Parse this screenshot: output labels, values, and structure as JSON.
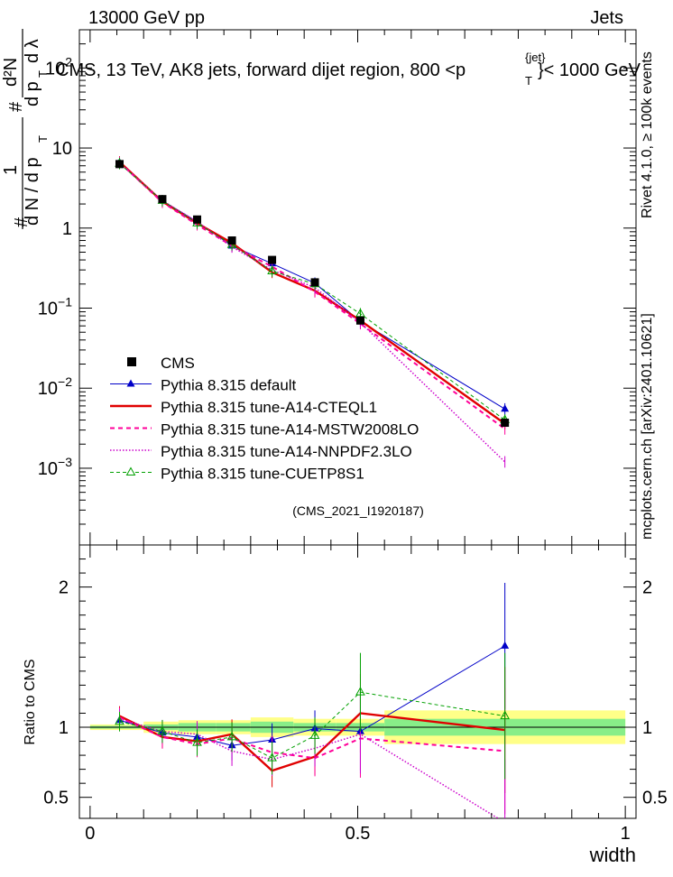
{
  "header": {
    "left": "13000 GeV pp",
    "right": "Jets",
    "plot_title": "CMS, 13 TeV, AK8 jets, forward dijet region, 800 <p",
    "title_sup": "{jet}",
    "title_sub": "T",
    "title_tail": "}< 1000 GeV",
    "side_rivet": "Rivet 4.1.0, ≥ 100k events",
    "side_mcplots": "mcplots.cern.ch [arXiv:2401.10621]",
    "watermark": "(CMS_2021_I1920187)"
  },
  "chart_data": [
    {
      "type": "line",
      "title": "CMS, 13 TeV, AK8 jets, forward dijet region, 800 < p_T^{jet} < 1000 GeV",
      "xlabel": "width",
      "ylabel": "1/dN/dp_T  d²N/(dp_T dλ)",
      "yscale": "log",
      "xlim": [
        -0.02,
        1.02
      ],
      "ylim": [
        0.00011,
        300
      ],
      "ylabel_parts": [
        "#",
        "1",
        "d N / d p",
        "T",
        "#",
        "d²N",
        "d p",
        "T",
        "d λ"
      ],
      "yticks": [
        {
          "v": 0.001,
          "base": "10",
          "exp": "−3"
        },
        {
          "v": 0.01,
          "base": "10",
          "exp": "−2"
        },
        {
          "v": 0.1,
          "base": "10",
          "exp": "−1"
        },
        {
          "v": 1,
          "base": "1",
          "exp": ""
        },
        {
          "v": 10,
          "base": "10",
          "exp": ""
        },
        {
          "v": 100,
          "base": "10",
          "exp": "2"
        }
      ],
      "x": [
        0.055,
        0.135,
        0.2,
        0.265,
        0.34,
        0.42,
        0.505,
        0.775
      ],
      "data": {
        "name": "CMS",
        "values": [
          6.3,
          2.3,
          1.28,
          0.7,
          0.4,
          0.21,
          0.07,
          0.0037
        ]
      },
      "series": [
        {
          "name": "Pythia 8.315 default",
          "color": "#0000c8",
          "style": "solid",
          "marker": "triangle-filled",
          "values": [
            6.6,
            2.2,
            1.2,
            0.6,
            0.36,
            0.205,
            0.068,
            0.0055
          ]
        },
        {
          "name": "Pythia 8.315 tune-A14-CTEQL1",
          "color": "#e00000",
          "style": "solid-thick",
          "marker": "none",
          "values": [
            6.7,
            2.15,
            1.15,
            0.65,
            0.28,
            0.165,
            0.07,
            0.0036
          ]
        },
        {
          "name": "Pythia 8.315 tune-A14-MSTW2008LO",
          "color": "#ff0099",
          "style": "dashed",
          "marker": "none",
          "values": [
            6.6,
            2.1,
            1.1,
            0.6,
            0.33,
            0.16,
            0.064,
            0.0031
          ]
        },
        {
          "name": "Pythia 8.315 tune-A14-NNPDF2.3LO",
          "color": "#cc00cc",
          "style": "dotted",
          "marker": "none",
          "values": [
            6.5,
            2.2,
            1.2,
            0.58,
            0.3,
            0.18,
            0.066,
            0.0012
          ]
        },
        {
          "name": "Pythia 8.315 tune-CUETP8S1",
          "color": "#00a000",
          "style": "dashed-thin",
          "marker": "triangle-open",
          "values": [
            6.4,
            2.2,
            1.15,
            0.62,
            0.29,
            0.2,
            0.085,
            0.004
          ]
        }
      ],
      "legend_position": "lower-left"
    },
    {
      "type": "line",
      "ylabel": "Ratio to CMS",
      "xlabel": "width",
      "xlim": [
        -0.02,
        1.02
      ],
      "ylim": [
        0.35,
        2.3
      ],
      "xticks": [
        "0",
        "0.5",
        "1"
      ],
      "yticks": [
        "0.5",
        "1",
        "2"
      ],
      "x": [
        0.055,
        0.135,
        0.2,
        0.265,
        0.34,
        0.42,
        0.505,
        0.775
      ],
      "bands": [
        {
          "x0": 0.0,
          "x1": 0.1,
          "stat": 0.01,
          "total": 0.02
        },
        {
          "x0": 0.1,
          "x1": 0.165,
          "stat": 0.02,
          "total": 0.04
        },
        {
          "x0": 0.165,
          "x1": 0.235,
          "stat": 0.03,
          "total": 0.05
        },
        {
          "x0": 0.235,
          "x1": 0.3,
          "stat": 0.03,
          "total": 0.05
        },
        {
          "x0": 0.3,
          "x1": 0.38,
          "stat": 0.04,
          "total": 0.07
        },
        {
          "x0": 0.38,
          "x1": 0.46,
          "stat": 0.03,
          "total": 0.06
        },
        {
          "x0": 0.46,
          "x1": 0.55,
          "stat": 0.03,
          "total": 0.06
        },
        {
          "x0": 0.55,
          "x1": 1.0,
          "stat": 0.06,
          "total": 0.12
        }
      ],
      "series": [
        {
          "name": "Pythia 8.315 default",
          "values": [
            1.05,
            0.96,
            0.93,
            0.87,
            0.91,
            0.99,
            0.97,
            1.58
          ]
        },
        {
          "name": "Pythia 8.315 tune-A14-CTEQL1",
          "values": [
            1.08,
            0.93,
            0.9,
            0.95,
            0.69,
            0.79,
            1.1,
            0.98
          ]
        },
        {
          "name": "Pythia 8.315 tune-A14-MSTW2008LO",
          "values": [
            1.07,
            0.93,
            0.88,
            0.92,
            0.82,
            0.78,
            0.92,
            0.83
          ]
        },
        {
          "name": "Pythia 8.315 tune-A14-NNPDF2.3LO",
          "values": [
            1.06,
            0.97,
            0.95,
            0.83,
            0.77,
            0.85,
            0.95,
            0.32
          ]
        },
        {
          "name": "Pythia 8.315 tune-CUETP8S1",
          "values": [
            1.04,
            0.97,
            0.89,
            0.93,
            0.78,
            0.94,
            1.25,
            1.08
          ]
        }
      ]
    }
  ]
}
